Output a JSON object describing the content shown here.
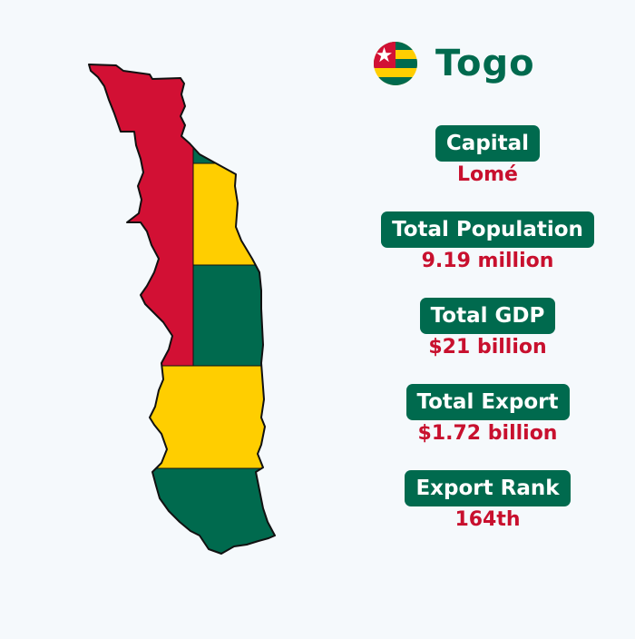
{
  "country": {
    "name": "Togo",
    "flag_icon": "togo-flag-icon"
  },
  "stats": [
    {
      "label": "Capital",
      "value": "Lomé"
    },
    {
      "label": "Total Population",
      "value": "9.19 million"
    },
    {
      "label": "Total GDP",
      "value": "$21 billion"
    },
    {
      "label": "Total Export",
      "value": "$1.72 billion"
    },
    {
      "label": "Export Rank",
      "value": "164th"
    }
  ],
  "colors": {
    "green": "#006a4e",
    "yellow": "#ffce00",
    "red": "#d21034",
    "value_text": "#c8102e",
    "background": "#f5f9fc"
  }
}
